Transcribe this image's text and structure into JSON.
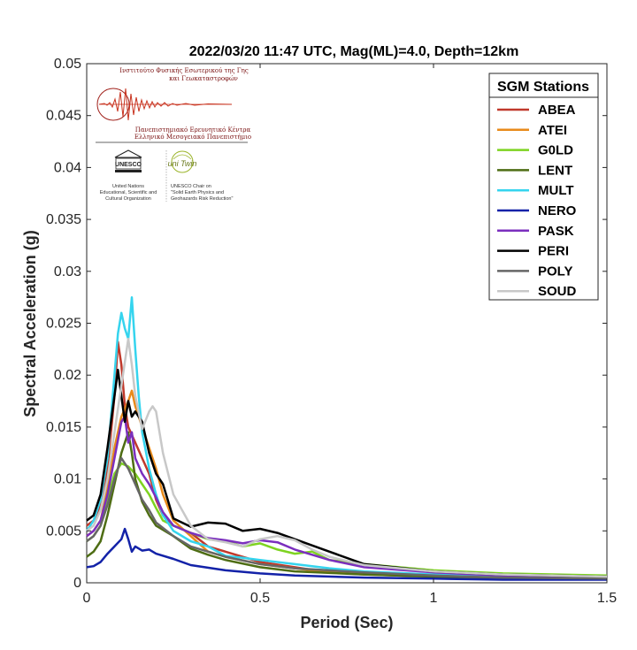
{
  "chart_data": {
    "type": "line",
    "title": "2022/03/20 11:47 UTC, Mag(ML)=4.0, Depth=12km",
    "xlabel": "Period (Sec)",
    "ylabel": "Spectral Acceleration (g)",
    "xlim": [
      0,
      1.5
    ],
    "ylim": [
      0,
      0.05
    ],
    "xticks": [
      0,
      0.5,
      1,
      1.5
    ],
    "xtick_labels": [
      "0",
      "0.5",
      "1",
      "1.5"
    ],
    "yticks": [
      0,
      0.005,
      0.01,
      0.015,
      0.02,
      0.025,
      0.03,
      0.035,
      0.04,
      0.045,
      0.05
    ],
    "ytick_labels": [
      "0",
      "0.005",
      "0.01",
      "0.015",
      "0.02",
      "0.025",
      "0.03",
      "0.035",
      "0.04",
      "0.045",
      "0.05"
    ],
    "grid": false,
    "legend": {
      "title": "SGM Stations",
      "placement": "top-right"
    },
    "series": [
      {
        "name": "ABEA",
        "color": "#c0392b",
        "x": [
          0,
          0.02,
          0.04,
          0.06,
          0.08,
          0.09,
          0.1,
          0.11,
          0.12,
          0.14,
          0.16,
          0.18,
          0.2,
          0.22,
          0.25,
          0.3,
          0.35,
          0.4,
          0.5,
          0.6,
          0.7,
          0.8,
          1.0,
          1.2,
          1.5
        ],
        "y": [
          0.0055,
          0.006,
          0.0075,
          0.011,
          0.018,
          0.0232,
          0.021,
          0.017,
          0.015,
          0.0135,
          0.012,
          0.0105,
          0.008,
          0.0065,
          0.0055,
          0.0048,
          0.0035,
          0.003,
          0.002,
          0.0015,
          0.001,
          0.0009,
          0.0007,
          0.0005,
          0.0004
        ]
      },
      {
        "name": "ATEI",
        "color": "#e88a1a",
        "x": [
          0,
          0.02,
          0.04,
          0.06,
          0.08,
          0.1,
          0.12,
          0.13,
          0.14,
          0.16,
          0.18,
          0.2,
          0.22,
          0.25,
          0.3,
          0.35,
          0.4,
          0.5,
          0.6,
          0.7,
          0.8,
          1.0,
          1.2,
          1.5
        ],
        "y": [
          0.0045,
          0.005,
          0.006,
          0.009,
          0.013,
          0.016,
          0.0175,
          0.0185,
          0.017,
          0.015,
          0.013,
          0.011,
          0.0085,
          0.006,
          0.0045,
          0.003,
          0.0025,
          0.0018,
          0.0014,
          0.001,
          0.0008,
          0.0006,
          0.0005,
          0.0004
        ]
      },
      {
        "name": "G0LD",
        "color": "#7ed321",
        "x": [
          0,
          0.02,
          0.04,
          0.06,
          0.08,
          0.1,
          0.12,
          0.14,
          0.16,
          0.18,
          0.2,
          0.22,
          0.25,
          0.3,
          0.35,
          0.4,
          0.45,
          0.5,
          0.55,
          0.6,
          0.65,
          0.7,
          0.8,
          1.0,
          1.2,
          1.5
        ],
        "y": [
          0.004,
          0.0045,
          0.0055,
          0.008,
          0.0105,
          0.0115,
          0.0112,
          0.0105,
          0.0095,
          0.0085,
          0.0072,
          0.006,
          0.0055,
          0.0048,
          0.0042,
          0.004,
          0.0035,
          0.0038,
          0.0032,
          0.0028,
          0.003,
          0.0022,
          0.0018,
          0.0012,
          0.0009,
          0.0007
        ]
      },
      {
        "name": "LENT",
        "color": "#4e6d14",
        "x": [
          0,
          0.02,
          0.04,
          0.06,
          0.08,
          0.1,
          0.12,
          0.13,
          0.14,
          0.16,
          0.18,
          0.2,
          0.25,
          0.3,
          0.35,
          0.4,
          0.5,
          0.6,
          0.8,
          1.0,
          1.2,
          1.5
        ],
        "y": [
          0.0025,
          0.003,
          0.004,
          0.0065,
          0.0095,
          0.0125,
          0.0145,
          0.0125,
          0.01,
          0.0078,
          0.0065,
          0.0055,
          0.0045,
          0.0033,
          0.0027,
          0.0022,
          0.0015,
          0.0011,
          0.0008,
          0.0006,
          0.0005,
          0.0004
        ]
      },
      {
        "name": "MULT",
        "color": "#35d4ee",
        "x": [
          0,
          0.02,
          0.04,
          0.06,
          0.08,
          0.09,
          0.1,
          0.11,
          0.12,
          0.13,
          0.14,
          0.15,
          0.16,
          0.18,
          0.2,
          0.22,
          0.25,
          0.3,
          0.35,
          0.4,
          0.45,
          0.5,
          0.6,
          0.7,
          0.8,
          1.0,
          1.2,
          1.5
        ],
        "y": [
          0.005,
          0.006,
          0.008,
          0.012,
          0.02,
          0.024,
          0.026,
          0.0245,
          0.0235,
          0.0275,
          0.0225,
          0.018,
          0.0145,
          0.011,
          0.0085,
          0.0065,
          0.005,
          0.004,
          0.0035,
          0.0026,
          0.0024,
          0.0022,
          0.0018,
          0.0014,
          0.0011,
          0.0008,
          0.0006,
          0.0005
        ]
      },
      {
        "name": "NERO",
        "color": "#1322a8",
        "x": [
          0,
          0.02,
          0.04,
          0.06,
          0.08,
          0.1,
          0.11,
          0.12,
          0.13,
          0.14,
          0.16,
          0.18,
          0.2,
          0.25,
          0.3,
          0.4,
          0.5,
          0.6,
          0.8,
          1.0,
          1.2,
          1.5
        ],
        "y": [
          0.0015,
          0.0016,
          0.002,
          0.0028,
          0.0035,
          0.0042,
          0.0052,
          0.0042,
          0.003,
          0.0035,
          0.0031,
          0.0032,
          0.0028,
          0.0023,
          0.0017,
          0.0012,
          0.0009,
          0.0007,
          0.0005,
          0.0004,
          0.0003,
          0.0003
        ]
      },
      {
        "name": "PASK",
        "color": "#7b2fbe",
        "x": [
          0,
          0.02,
          0.04,
          0.06,
          0.08,
          0.1,
          0.11,
          0.12,
          0.13,
          0.14,
          0.16,
          0.18,
          0.2,
          0.22,
          0.25,
          0.3,
          0.35,
          0.4,
          0.45,
          0.5,
          0.55,
          0.6,
          0.7,
          0.8,
          1.0,
          1.2,
          1.5
        ],
        "y": [
          0.0045,
          0.005,
          0.006,
          0.0085,
          0.012,
          0.0155,
          0.016,
          0.0135,
          0.0145,
          0.012,
          0.0105,
          0.0095,
          0.0082,
          0.0068,
          0.0055,
          0.0048,
          0.0043,
          0.0041,
          0.0038,
          0.0041,
          0.0039,
          0.0032,
          0.0022,
          0.0015,
          0.001,
          0.0007,
          0.0005
        ]
      },
      {
        "name": "PERI",
        "color": "#000000",
        "x": [
          0,
          0.02,
          0.04,
          0.06,
          0.08,
          0.09,
          0.1,
          0.11,
          0.12,
          0.13,
          0.14,
          0.16,
          0.18,
          0.2,
          0.22,
          0.25,
          0.3,
          0.35,
          0.4,
          0.45,
          0.5,
          0.55,
          0.6,
          0.7,
          0.8,
          1.0,
          1.2,
          1.5
        ],
        "y": [
          0.006,
          0.0065,
          0.0085,
          0.013,
          0.018,
          0.0205,
          0.018,
          0.0155,
          0.0175,
          0.016,
          0.0165,
          0.0155,
          0.0125,
          0.0105,
          0.0095,
          0.0062,
          0.0054,
          0.0058,
          0.0057,
          0.005,
          0.0052,
          0.0048,
          0.0042,
          0.003,
          0.0018,
          0.0011,
          0.0008,
          0.0006
        ]
      },
      {
        "name": "POLY",
        "color": "#666666",
        "x": [
          0,
          0.02,
          0.04,
          0.06,
          0.08,
          0.1,
          0.12,
          0.14,
          0.16,
          0.18,
          0.2,
          0.25,
          0.3,
          0.4,
          0.5,
          0.6,
          0.8,
          1.0,
          1.2,
          1.5
        ],
        "y": [
          0.004,
          0.0045,
          0.0055,
          0.0075,
          0.01,
          0.012,
          0.011,
          0.0095,
          0.008,
          0.007,
          0.0058,
          0.0045,
          0.0035,
          0.0025,
          0.0018,
          0.0014,
          0.001,
          0.0007,
          0.0005,
          0.0004
        ]
      },
      {
        "name": "SOUD",
        "color": "#c8c8c8",
        "x": [
          0,
          0.02,
          0.04,
          0.06,
          0.08,
          0.1,
          0.12,
          0.13,
          0.14,
          0.16,
          0.18,
          0.19,
          0.2,
          0.22,
          0.25,
          0.3,
          0.35,
          0.4,
          0.45,
          0.5,
          0.55,
          0.6,
          0.65,
          0.7,
          0.8,
          1.0,
          1.2,
          1.5
        ],
        "y": [
          0.005,
          0.0055,
          0.007,
          0.01,
          0.0145,
          0.019,
          0.0235,
          0.021,
          0.018,
          0.0148,
          0.0165,
          0.017,
          0.0165,
          0.0125,
          0.0085,
          0.0055,
          0.0042,
          0.0039,
          0.0035,
          0.0042,
          0.0045,
          0.0041,
          0.0032,
          0.0025,
          0.0017,
          0.0011,
          0.0008,
          0.0006
        ]
      }
    ]
  },
  "logo": {
    "institute_line1": "Ινστιτούτο Φυσικής Εσωτερικού της Γης",
    "institute_line2": "και Γεωκαταστροφών",
    "centre_line1": "Πανεπιστημιακό Ερευνητικό Κέντρα",
    "centre_line2": "Ελληνικό Μεσογειακό Πανεπιστήμιο",
    "unesco_label": "UNESCO",
    "unesco_caption1": "United Nations",
    "unesco_caption2": "Educational, Scientific and",
    "unesco_caption3": "Cultural Organization",
    "unitwin_label": "uni Twin",
    "chair_line1": "UNESCO Chair on",
    "chair_line2": "\"Solid Earth Physics and",
    "chair_line3": "Geohazards Risk Reduction\""
  }
}
